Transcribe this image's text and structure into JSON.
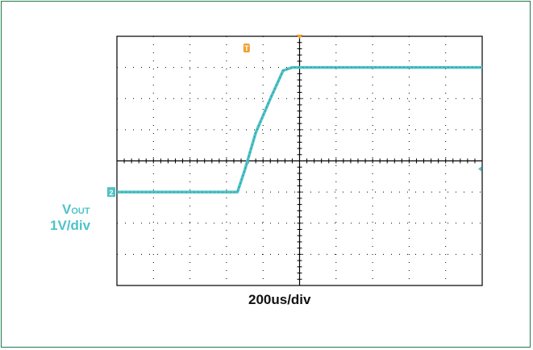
{
  "chart_data": {
    "type": "line",
    "title": "",
    "xlabel": "200us/div",
    "ylabel": "VOUT 1V/div",
    "channel": {
      "name": "V",
      "subscript": "OUT",
      "scale": "1V/div",
      "marker": "2"
    },
    "trigger_marker": "T",
    "x_divisions": 10,
    "y_divisions": 8,
    "xlim_div": [
      0,
      10
    ],
    "ylim_div": [
      -4,
      4
    ],
    "grid": true,
    "series": [
      {
        "name": "VOUT",
        "color": "#4fc3c8",
        "x_div": [
          0,
          3.3,
          3.5,
          3.8,
          4.2,
          4.55,
          4.8,
          10
        ],
        "y_div": [
          -1.0,
          -1.0,
          -0.3,
          0.9,
          2.0,
          2.9,
          3.0,
          3.0
        ]
      }
    ]
  },
  "colors": {
    "trace": "#4fc3c8",
    "trigger": "#f0a030",
    "grid": "#000000"
  }
}
